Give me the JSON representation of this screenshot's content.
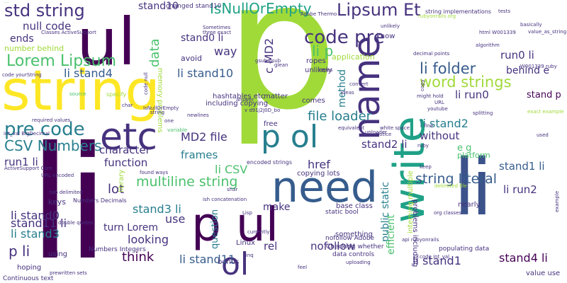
{
  "palette": [
    "#440154",
    "#46327e",
    "#365c8d",
    "#277f8e",
    "#1fa187",
    "#4ac16d",
    "#a0da39",
    "#fde725"
  ],
  "words": [
    {
      "t": "string",
      "c": "#fde725"
    },
    {
      "t": "li",
      "c": "#440154"
    },
    {
      "t": "p",
      "c": "#a0da39"
    },
    {
      "t": "ul",
      "c": "#440154"
    },
    {
      "t": "write",
      "c": "#1fa187"
    },
    {
      "t": "need",
      "c": "#365c8d"
    },
    {
      "t": "etc",
      "c": "#46327e"
    },
    {
      "t": "p ol",
      "c": "#277f8e"
    },
    {
      "t": "p ul",
      "c": "#440154"
    },
    {
      "t": "name",
      "c": "#46327e"
    },
    {
      "t": "li",
      "c": "#3b528b"
    },
    {
      "t": "ol",
      "c": "#46327e"
    },
    {
      "t": "std string",
      "c": "#46327e"
    },
    {
      "t": "Lipsum Et",
      "c": "#46327e"
    },
    {
      "t": "IsNullOrEmpty",
      "c": "#1fa187"
    },
    {
      "t": "code pre",
      "c": "#46327e"
    },
    {
      "t": "pre code",
      "c": "#277f8e"
    },
    {
      "t": "Lorem Lipsum",
      "c": "#4ac16d"
    },
    {
      "t": "li folder",
      "c": "#365c8d"
    },
    {
      "t": "word strings",
      "c": "#a0da39"
    },
    {
      "t": "CSV Numbers",
      "c": "#277f8e"
    },
    {
      "t": "multiline string",
      "c": "#4ac16d"
    },
    {
      "t": "string literal",
      "c": "#365c8d"
    },
    {
      "t": "file loader",
      "c": "#277f8e"
    },
    {
      "t": "null code",
      "c": "#46327e"
    },
    {
      "t": "li stand4",
      "c": "#365c8d"
    },
    {
      "t": "li stand10",
      "c": "#365c8d"
    },
    {
      "t": "li stand11",
      "c": "#365c8d"
    },
    {
      "t": "li stand2",
      "c": "#277f8e"
    },
    {
      "t": "li stand0",
      "c": "#46327e"
    },
    {
      "t": "li stand3",
      "c": "#277f8e"
    },
    {
      "t": "stand11 li",
      "c": "#46327e"
    },
    {
      "t": "stand10",
      "c": "#46327e"
    },
    {
      "t": "stand0 li",
      "c": "#46327e"
    },
    {
      "t": "stand2 li",
      "c": "#46327e"
    },
    {
      "t": "stand3 li",
      "c": "#277f8e"
    },
    {
      "t": "stand4 li",
      "c": "#440154"
    },
    {
      "t": "stand1 li",
      "c": "#365c8d"
    },
    {
      "t": "li stand1",
      "c": "#46327e"
    },
    {
      "t": "stand p",
      "c": "#440154"
    },
    {
      "t": "run0 li",
      "c": "#46327e"
    },
    {
      "t": "li run0",
      "c": "#46327e"
    },
    {
      "t": "run1 li",
      "c": "#46327e"
    },
    {
      "t": "li run2",
      "c": "#46327e"
    },
    {
      "t": "p li",
      "c": "#46327e"
    },
    {
      "t": "li p",
      "c": "#4ac16d"
    },
    {
      "t": "li CSV",
      "c": "#4ac16d"
    },
    {
      "t": "MD2 file",
      "c": "#46327e"
    },
    {
      "t": "c MD2",
      "c": "#46327e"
    },
    {
      "t": "character",
      "c": "#46327e"
    },
    {
      "t": "function",
      "c": "#46327e"
    },
    {
      "t": "frames",
      "c": "#277f8e"
    },
    {
      "t": "href",
      "c": "#46327e"
    },
    {
      "t": "lot",
      "c": "#46327e"
    },
    {
      "t": "use",
      "c": "#46327e"
    },
    {
      "t": "think",
      "c": "#440154"
    },
    {
      "t": "looking",
      "c": "#46327e"
    },
    {
      "t": "turn Lorem",
      "c": "#46327e"
    },
    {
      "t": "question",
      "c": "#277f8e"
    },
    {
      "t": "rel",
      "c": "#46327e"
    },
    {
      "t": "nofollow",
      "c": "#46327e"
    },
    {
      "t": "make",
      "c": "#46327e"
    },
    {
      "t": "way",
      "c": "#46327e"
    },
    {
      "t": "method",
      "c": "#277f8e"
    },
    {
      "t": "public static",
      "c": "#277f8e"
    },
    {
      "t": "efficient",
      "c": "#4ac16d"
    },
    {
      "t": "without",
      "c": "#46327e"
    },
    {
      "t": "data",
      "c": "#4ac16d"
    },
    {
      "t": "ends",
      "c": "#46327e"
    },
    {
      "t": "behind e",
      "c": "#46327e"
    },
    {
      "t": "e g",
      "c": "#4ac16d"
    },
    {
      "t": "avoid",
      "c": "#46327e"
    },
    {
      "t": "keys",
      "c": "#46327e"
    },
    {
      "t": "number behind",
      "c": "#a0da39"
    },
    {
      "t": "ropes",
      "c": "#46327e"
    },
    {
      "t": "unlikely",
      "c": "#46327e"
    },
    {
      "t": "base class",
      "c": "#46327e"
    },
    {
      "t": "copying lots",
      "c": "#46327e"
    },
    {
      "t": "including copying",
      "c": "#46327e"
    },
    {
      "t": "hashtables etc",
      "c": "#46327e"
    },
    {
      "t": "matter",
      "c": "#46327e"
    },
    {
      "t": "comes",
      "c": "#46327e"
    },
    {
      "t": "free",
      "c": "#46327e"
    },
    {
      "t": "bonus",
      "c": "#46327e"
    },
    {
      "t": "hoping",
      "c": "#46327e"
    },
    {
      "t": "using",
      "c": "#46327e"
    },
    {
      "t": "value use",
      "c": "#46327e"
    },
    {
      "t": "something",
      "c": "#46327e"
    },
    {
      "t": "Linux",
      "c": "#46327e"
    },
    {
      "t": "memory problems",
      "c": "#a0da39"
    },
    {
      "t": "changed stand10",
      "c": "#46327e"
    },
    {
      "t": "know",
      "c": "#46327e"
    },
    {
      "t": "application",
      "c": "#a0da39"
    },
    {
      "t": "interning multiple",
      "c": "#a0da39"
    },
    {
      "t": "problems including",
      "c": "#46327e"
    },
    {
      "t": "Continuous text",
      "c": "#46327e"
    },
    {
      "t": "data controls",
      "c": "#46327e"
    },
    {
      "t": "populating data",
      "c": "#46327e"
    },
    {
      "t": "Checking whether",
      "c": "#46327e"
    },
    {
      "t": "nofollow Adobe",
      "c": "#46327e"
    },
    {
      "t": "static bool",
      "c": "#46327e"
    },
    {
      "t": "Numbers Integers",
      "c": "#46327e"
    },
    {
      "t": "Numbers Decimals",
      "c": "#46327e"
    },
    {
      "t": "encoded strings",
      "c": "#46327e"
    },
    {
      "t": "library",
      "c": "#a0da39"
    },
    {
      "t": "platform",
      "c": "#4ac16d"
    },
    {
      "t": "nearly",
      "c": "#46327e"
    },
    {
      "t": "string implementations",
      "c": "#46327e"
    },
    {
      "t": "Adobe Thermo",
      "c": "#46327e"
    },
    {
      "t": "Sometimes",
      "c": "#46327e"
    },
    {
      "t": "three exact",
      "c": "#46327e"
    },
    {
      "t": "unlikely",
      "c": "#46327e"
    },
    {
      "t": "decimal points",
      "c": "#46327e"
    },
    {
      "t": "html W001339",
      "c": "#46327e"
    },
    {
      "t": "basically",
      "c": "#46327e"
    },
    {
      "t": "value_as_string",
      "c": "#46327e"
    },
    {
      "t": "algorithm",
      "c": "#46327e"
    },
    {
      "t": "tests",
      "c": "#46327e"
    },
    {
      "t": "rubyonrails org",
      "c": "#a0da39"
    },
    {
      "t": "Classes ActiveSupport",
      "c": "#46327e"
    },
    {
      "t": "ActiveSupport Core",
      "c": "#46327e"
    },
    {
      "t": "code yourString",
      "c": "#46327e"
    },
    {
      "t": "gsub gsub",
      "c": "#46327e"
    },
    {
      "t": "W001339 ruby",
      "c": "#46327e"
    },
    {
      "t": "exact example",
      "c": "#a0da39"
    },
    {
      "t": "splitting",
      "c": "#46327e"
    },
    {
      "t": "youtube",
      "c": "#46327e"
    },
    {
      "t": "might hold",
      "c": "#46327e"
    },
    {
      "t": "convert",
      "c": "#46327e"
    },
    {
      "t": "ideas",
      "c": "#46327e"
    },
    {
      "t": "answer",
      "c": "#46327e"
    },
    {
      "t": "string interning",
      "c": "#4ac16d"
    },
    {
      "t": "equivalent",
      "c": "#46327e"
    },
    {
      "t": "uploader",
      "c": "#46327e"
    },
    {
      "t": "white space",
      "c": "#46327e"
    },
    {
      "t": "Notice",
      "c": "#46327e"
    },
    {
      "t": "required values",
      "c": "#46327e"
    },
    {
      "t": "int_val BigDecimal",
      "c": "#46327e"
    },
    {
      "t": "URL encoded",
      "c": "#46327e"
    },
    {
      "t": "tab delimited",
      "c": "#46327e"
    },
    {
      "t": "double quotes",
      "c": "#46327e"
    },
    {
      "t": "ruby",
      "c": "#46327e"
    },
    {
      "t": "org classes",
      "c": "#46327e"
    },
    {
      "t": "delimited file",
      "c": "#a0da39"
    },
    {
      "t": "api rubyonrails",
      "c": "#46327e"
    },
    {
      "t": "uploading",
      "c": "#46327e"
    },
    {
      "t": "code int_val",
      "c": "#46327e"
    },
    {
      "t": "feel",
      "c": "#46327e"
    },
    {
      "t": "Lisp",
      "c": "#46327e"
    },
    {
      "t": "currently",
      "c": "#46327e"
    },
    {
      "t": "ish concatenation",
      "c": "#46327e"
    },
    {
      "t": "found ways",
      "c": "#46327e"
    },
    {
      "t": "shar",
      "c": "#46327e"
    },
    {
      "t": "v d91j2J0D_bo",
      "c": "#46327e"
    },
    {
      "t": "char",
      "c": "#46327e"
    },
    {
      "t": "prewritten sets",
      "c": "#46327e"
    },
    {
      "t": "example",
      "c": "#46327e"
    },
    {
      "t": "variable",
      "c": "#4ac16d"
    },
    {
      "t": "newlines",
      "c": "#46327e"
    },
    {
      "t": "specify",
      "c": "#a0da39"
    },
    {
      "t": "source",
      "c": "#4ac16d"
    },
    {
      "t": "IsNullOrEmpty",
      "c": "#46327e"
    },
    {
      "t": "string",
      "c": "#46327e"
    },
    {
      "t": "one",
      "c": "#46327e"
    },
    {
      "t": "keep",
      "c": "#46327e"
    },
    {
      "t": "fine",
      "c": "#46327e"
    },
    {
      "t": "used",
      "c": "#46327e"
    },
    {
      "t": "Linq",
      "c": "#46327e"
    },
    {
      "t": "URL",
      "c": "#46327e"
    },
    {
      "t": "copy",
      "c": "#46327e"
    },
    {
      "t": "code null",
      "c": "#46327e"
    },
    {
      "t": "glean",
      "c": "#46327e"
    },
    {
      "t": "ropes",
      "c": "#46327e"
    }
  ]
}
